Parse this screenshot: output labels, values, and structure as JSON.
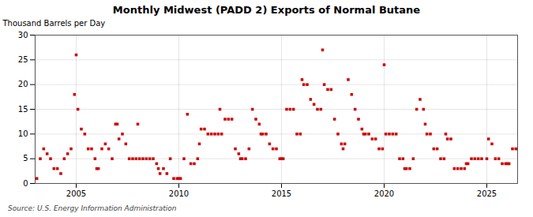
{
  "chart_data": {
    "type": "scatter",
    "title": "Monthly Midwest (PADD 2) Exports of Normal Butane",
    "ylabel": "Thousand Barrels per Day",
    "source": "Source: U.S. Energy Information Administration",
    "color": "#cc0000",
    "marker": "square",
    "grid": true,
    "xlim": [
      2003.0,
      2026.5
    ],
    "ylim": [
      0,
      30
    ],
    "xticks": [
      2005,
      2010,
      2015,
      2020,
      2025
    ],
    "yticks": [
      0,
      5,
      10,
      15,
      20,
      25,
      30
    ],
    "x": [
      2003.083,
      2003.25,
      2003.417,
      2003.583,
      2003.75,
      2003.917,
      2004.083,
      2004.25,
      2004.417,
      2004.583,
      2004.75,
      2004.917,
      2005.0,
      2005.083,
      2005.25,
      2005.417,
      2005.583,
      2005.75,
      2005.917,
      2006.0,
      2006.083,
      2006.25,
      2006.417,
      2006.583,
      2006.75,
      2006.917,
      2007.0,
      2007.083,
      2007.25,
      2007.417,
      2007.583,
      2007.75,
      2007.917,
      2008.0,
      2008.083,
      2008.25,
      2008.417,
      2008.583,
      2008.75,
      2008.917,
      2009.0,
      2009.083,
      2009.25,
      2009.417,
      2009.583,
      2009.75,
      2009.917,
      2010.0,
      2010.083,
      2010.25,
      2010.417,
      2010.583,
      2010.75,
      2010.917,
      2011.0,
      2011.083,
      2011.25,
      2011.417,
      2011.583,
      2011.75,
      2011.917,
      2012.0,
      2012.083,
      2012.25,
      2012.417,
      2012.583,
      2012.75,
      2012.917,
      2013.0,
      2013.083,
      2013.25,
      2013.417,
      2013.583,
      2013.75,
      2013.917,
      2014.0,
      2014.083,
      2014.25,
      2014.417,
      2014.583,
      2014.75,
      2014.917,
      2015.0,
      2015.083,
      2015.25,
      2015.417,
      2015.583,
      2015.75,
      2015.917,
      2016.0,
      2016.083,
      2016.25,
      2016.417,
      2016.583,
      2016.75,
      2016.917,
      2017.0,
      2017.083,
      2017.25,
      2017.417,
      2017.583,
      2017.75,
      2017.917,
      2018.0,
      2018.083,
      2018.25,
      2018.417,
      2018.583,
      2018.75,
      2018.917,
      2019.0,
      2019.083,
      2019.25,
      2019.417,
      2019.583,
      2019.75,
      2019.917,
      2020.0,
      2020.083,
      2020.25,
      2020.417,
      2020.583,
      2020.75,
      2020.917,
      2021.0,
      2021.083,
      2021.25,
      2021.417,
      2021.583,
      2021.75,
      2021.917,
      2022.0,
      2022.083,
      2022.25,
      2022.417,
      2022.583,
      2022.75,
      2022.917,
      2023.0,
      2023.083,
      2023.25,
      2023.417,
      2023.583,
      2023.75,
      2023.917,
      2024.0,
      2024.083,
      2024.25,
      2024.417,
      2024.583,
      2024.75,
      2025.0,
      2025.083,
      2025.25,
      2025.417,
      2025.583,
      2025.75,
      2025.917,
      2026.0,
      2026.083,
      2026.25,
      2026.417
    ],
    "values": [
      1.0,
      5.0,
      7.0,
      6.0,
      5.0,
      3.0,
      3.0,
      2.0,
      5.0,
      6.0,
      7.0,
      18.0,
      26.0,
      15.0,
      11.0,
      10.0,
      7.0,
      7.0,
      5.0,
      3.0,
      3.0,
      7.0,
      8.0,
      7.0,
      5.0,
      12.0,
      12.0,
      9.0,
      10.0,
      8.0,
      5.0,
      5.0,
      5.0,
      12.0,
      5.0,
      5.0,
      5.0,
      5.0,
      5.0,
      4.0,
      3.0,
      2.0,
      3.0,
      2.0,
      5.0,
      1.0,
      1.0,
      1.0,
      1.0,
      5.0,
      14.0,
      4.0,
      4.0,
      5.0,
      8.0,
      11.0,
      11.0,
      10.0,
      10.0,
      10.0,
      10.0,
      15.0,
      10.0,
      13.0,
      13.0,
      13.0,
      7.0,
      6.0,
      5.0,
      5.0,
      5.0,
      7.0,
      15.0,
      13.0,
      12.0,
      10.0,
      10.0,
      10.0,
      8.0,
      7.0,
      7.0,
      5.0,
      5.0,
      5.0,
      15.0,
      15.0,
      15.0,
      10.0,
      10.0,
      21.0,
      20.0,
      20.0,
      17.0,
      16.0,
      15.0,
      15.0,
      27.0,
      20.0,
      19.0,
      19.0,
      13.0,
      10.0,
      8.0,
      7.0,
      8.0,
      21.0,
      18.0,
      15.0,
      13.0,
      11.0,
      10.0,
      10.0,
      10.0,
      9.0,
      9.0,
      7.0,
      7.0,
      24.0,
      10.0,
      10.0,
      10.0,
      10.0,
      5.0,
      5.0,
      3.0,
      3.0,
      3.0,
      5.0,
      15.0,
      17.0,
      15.0,
      12.0,
      10.0,
      10.0,
      7.0,
      7.0,
      5.0,
      5.0,
      10.0,
      9.0,
      9.0,
      3.0,
      3.0,
      3.0,
      3.0,
      4.0,
      4.0,
      5.0,
      5.0,
      5.0,
      5.0,
      5.0,
      9.0,
      8.0,
      5.0,
      5.0,
      4.0,
      4.0,
      4.0,
      4.0,
      7.0,
      7.0
    ]
  }
}
